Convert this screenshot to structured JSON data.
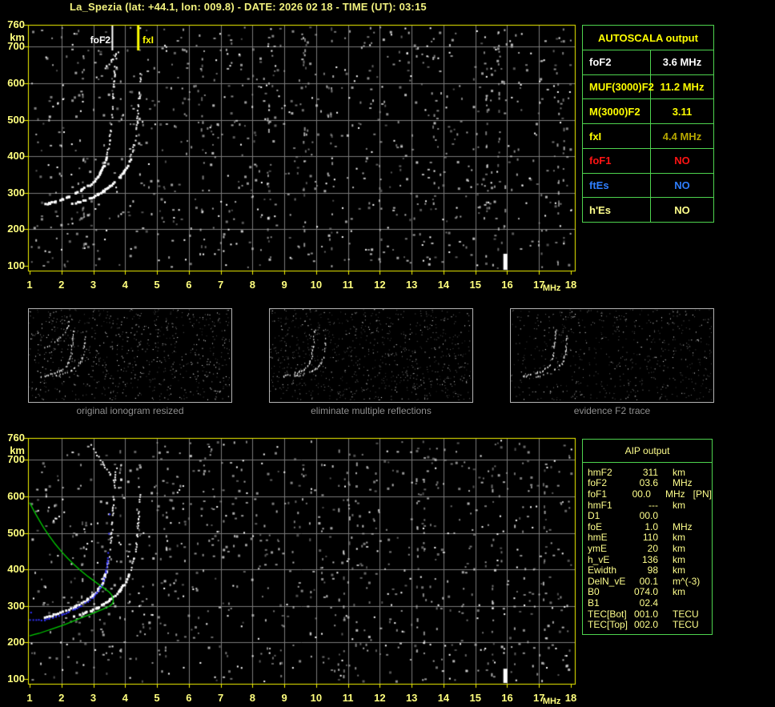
{
  "title": "La_Spezia (lat: +44.1, lon: 009.8) - DATE: 2026 02 18 - TIME (UT): 03:15",
  "colors": {
    "frame_yellow": "#f4f400",
    "tick_label": "#ffff7e",
    "grid_gray": "#7a7a7a",
    "noise_gray": "#9a9a9a",
    "trace_white": "#ffffff",
    "profile_green": "#00cc00",
    "restored_blue": "#3333ff",
    "table_border_green": "#4ed34e",
    "bright_yellow": "#ffff00",
    "pale_yellow": "#ffff8c",
    "olive_yellow": "#b8a800",
    "red": "#ff1414",
    "blue_text": "#2f7fff",
    "white": "#ffffff",
    "caption_gray": "#8f8f8f"
  },
  "autoscala_table": {
    "header": "AUTOSCALA output",
    "rows": [
      {
        "label": "foF2",
        "value": "3.6 MHz",
        "label_color": "#ffffff",
        "value_color": "#ffffff"
      },
      {
        "label": "MUF(3000)F2",
        "value": "11.2 MHz",
        "label_color": "#ffff00",
        "value_color": "#ffff00"
      },
      {
        "label": "M(3000)F2",
        "value": "3.11",
        "label_color": "#ffff00",
        "value_color": "#ffff00"
      },
      {
        "label": "fxI",
        "value": "4.4 MHz",
        "label_color": "#ffff00",
        "value_color": "#b8a800"
      },
      {
        "label": "foF1",
        "value": "NO",
        "label_color": "#ff1414",
        "value_color": "#ff1414"
      },
      {
        "label": "ftEs",
        "value": "NO",
        "label_color": "#2f7fff",
        "value_color": "#2f7fff"
      },
      {
        "label": "h'Es",
        "value": "NO",
        "label_color": "#ffff8c",
        "value_color": "#ffff8c"
      }
    ]
  },
  "aip_table": {
    "header": "AIP output",
    "rows": [
      {
        "label": "hmF2",
        "value": "311",
        "unit": "km",
        "extra": ""
      },
      {
        "label": "foF2",
        "value": "03.6",
        "unit": "MHz",
        "extra": ""
      },
      {
        "label": "foF1",
        "value": "00.0",
        "unit": "MHz",
        "extra": "[PN]"
      },
      {
        "label": "hmF1",
        "value": "---",
        "unit": "km",
        "extra": ""
      },
      {
        "label": "D1",
        "value": "00.0",
        "unit": "",
        "extra": ""
      },
      {
        "label": "foE",
        "value": "1.0",
        "unit": "MHz",
        "extra": ""
      },
      {
        "label": "hmE",
        "value": "110",
        "unit": "km",
        "extra": ""
      },
      {
        "label": "ymE",
        "value": "20",
        "unit": "km",
        "extra": ""
      },
      {
        "label": "h_vE",
        "value": "136",
        "unit": "km",
        "extra": ""
      },
      {
        "label": "Ewidth",
        "value": "98",
        "unit": "km",
        "extra": ""
      },
      {
        "label": "DelN_vE",
        "value": "00.1",
        "unit": "m^(-3)",
        "extra": ""
      },
      {
        "label": "B0",
        "value": "074.0",
        "unit": "km",
        "extra": ""
      },
      {
        "label": "B1",
        "value": "02.4",
        "unit": "",
        "extra": ""
      },
      {
        "label": "TEC[Bot]",
        "value": "001.0",
        "unit": "TECU",
        "extra": ""
      },
      {
        "label": "TEC[Top]",
        "value": "002.0",
        "unit": "TECU",
        "extra": ""
      }
    ]
  },
  "thumbnails": [
    {
      "caption": "original ionogram resized"
    },
    {
      "caption": "eliminate multiple reflections"
    },
    {
      "caption": "evidence F2 trace"
    }
  ],
  "chart_data": [
    {
      "id": "main_ionogram",
      "type": "scatter",
      "xlabel": "MHz",
      "ylabel": "km",
      "xlim": [
        1,
        18
      ],
      "ylim": [
        100,
        760
      ],
      "grid": true,
      "x_ticks": [
        "1",
        "2",
        "3",
        "4",
        "5",
        "6",
        "7",
        "8",
        "9",
        "10",
        "11",
        "12",
        "13",
        "14",
        "15",
        "16",
        "17",
        "18"
      ],
      "y_ticks": [
        {
          "v": 760,
          "label": "760"
        },
        {
          "v": 700,
          "label": "700"
        },
        {
          "v": 600,
          "label": "600"
        },
        {
          "v": 500,
          "label": "500"
        },
        {
          "v": 400,
          "label": "400"
        },
        {
          "v": 300,
          "label": "300"
        },
        {
          "v": 200,
          "label": "200"
        },
        {
          "v": 100,
          "label": "100"
        }
      ],
      "markers": [
        {
          "name": "foF2",
          "mhz": 3.6,
          "color": "#ffffff"
        },
        {
          "name": "fxI",
          "mhz": 4.4,
          "color": "#ffff00"
        }
      ],
      "series": [
        {
          "name": "f2-trace-o-mode",
          "points": [
            [
              1.45,
              271
            ],
            [
              1.6,
              275
            ],
            [
              1.8,
              280
            ],
            [
              2.0,
              286
            ],
            [
              2.2,
              293
            ],
            [
              2.4,
              301
            ],
            [
              2.6,
              310
            ],
            [
              2.8,
              321
            ],
            [
              2.95,
              331
            ],
            [
              3.1,
              345
            ],
            [
              3.2,
              358
            ],
            [
              3.3,
              376
            ],
            [
              3.38,
              397
            ],
            [
              3.44,
              420
            ],
            [
              3.49,
              446
            ],
            [
              3.53,
              474
            ],
            [
              3.56,
              503
            ],
            [
              3.58,
              532
            ],
            [
              3.6,
              562
            ],
            [
              3.62,
              594
            ],
            [
              3.64,
              625
            ],
            [
              3.67,
              654
            ],
            [
              3.7,
              681
            ]
          ]
        },
        {
          "name": "f2-trace-x-mode",
          "points": [
            [
              2.3,
              272
            ],
            [
              2.5,
              277
            ],
            [
              2.7,
              283
            ],
            [
              2.9,
              290
            ],
            [
              3.1,
              298
            ],
            [
              3.3,
              308
            ],
            [
              3.5,
              320
            ],
            [
              3.65,
              331
            ],
            [
              3.8,
              345
            ],
            [
              3.95,
              362
            ],
            [
              4.08,
              383
            ],
            [
              4.18,
              407
            ],
            [
              4.26,
              434
            ],
            [
              4.32,
              463
            ],
            [
              4.36,
              494
            ],
            [
              4.39,
              526
            ],
            [
              4.42,
              560
            ],
            [
              4.44,
              594
            ],
            [
              4.46,
              628
            ]
          ]
        },
        {
          "name": "es-patch",
          "points": [
            [
              1.72,
              536
            ],
            [
              1.8,
              542
            ],
            [
              1.88,
              548
            ],
            [
              1.96,
              553
            ],
            [
              2.04,
              557
            ]
          ]
        },
        {
          "name": "spread-segment",
          "points": [
            [
              3.0,
              610
            ],
            [
              3.2,
              630
            ],
            [
              3.4,
              649
            ],
            [
              3.6,
              668
            ],
            [
              3.76,
              688
            ]
          ]
        },
        {
          "name": "interference-16mhz",
          "points": [
            [
              15.93,
              100
            ],
            [
              15.93,
              133
            ]
          ]
        }
      ]
    },
    {
      "id": "inverted_ionogram",
      "type": "scatter",
      "xlabel": "MHz",
      "ylabel": "km",
      "xlim": [
        1,
        18
      ],
      "ylim": [
        100,
        760
      ],
      "grid": true,
      "x_ticks": [
        "1",
        "2",
        "3",
        "4",
        "5",
        "6",
        "7",
        "8",
        "9",
        "10",
        "11",
        "12",
        "13",
        "14",
        "15",
        "16",
        "17",
        "18"
      ],
      "y_ticks": [
        {
          "v": 760,
          "label": "760"
        },
        {
          "v": 700,
          "label": "700"
        },
        {
          "v": 600,
          "label": "600"
        },
        {
          "v": 500,
          "label": "500"
        },
        {
          "v": 400,
          "label": "400"
        },
        {
          "v": 300,
          "label": "300"
        },
        {
          "v": 200,
          "label": "200"
        },
        {
          "v": 100,
          "label": "100"
        }
      ],
      "markers": [],
      "series": [
        {
          "name": "f2-trace-o-mode",
          "points": [
            [
              1.45,
              271
            ],
            [
              1.6,
              275
            ],
            [
              1.8,
              280
            ],
            [
              2.0,
              286
            ],
            [
              2.2,
              293
            ],
            [
              2.4,
              301
            ],
            [
              2.6,
              310
            ],
            [
              2.8,
              321
            ],
            [
              2.95,
              331
            ],
            [
              3.1,
              345
            ],
            [
              3.2,
              358
            ],
            [
              3.3,
              376
            ],
            [
              3.38,
              397
            ],
            [
              3.44,
              420
            ],
            [
              3.49,
              446
            ],
            [
              3.53,
              474
            ],
            [
              3.56,
              503
            ],
            [
              3.58,
              532
            ],
            [
              3.6,
              562
            ],
            [
              3.62,
              594
            ],
            [
              3.64,
              625
            ],
            [
              3.67,
              654
            ],
            [
              3.7,
              681
            ]
          ]
        },
        {
          "name": "f2-trace-x-mode",
          "points": [
            [
              2.3,
              272
            ],
            [
              2.5,
              277
            ],
            [
              2.7,
              283
            ],
            [
              2.9,
              290
            ],
            [
              3.1,
              298
            ],
            [
              3.3,
              308
            ],
            [
              3.5,
              320
            ],
            [
              3.65,
              331
            ],
            [
              3.8,
              345
            ],
            [
              3.95,
              362
            ],
            [
              4.08,
              383
            ],
            [
              4.18,
              407
            ],
            [
              4.26,
              434
            ],
            [
              4.32,
              463
            ],
            [
              4.36,
              494
            ],
            [
              4.39,
              526
            ],
            [
              4.42,
              560
            ],
            [
              4.44,
              594
            ],
            [
              4.46,
              628
            ]
          ]
        },
        {
          "name": "es-patch",
          "points": [
            [
              1.72,
              536
            ],
            [
              1.8,
              542
            ],
            [
              1.88,
              548
            ],
            [
              1.96,
              553
            ],
            [
              2.04,
              557
            ]
          ]
        },
        {
          "name": "spread-segment",
          "points": [
            [
              2.9,
              745
            ],
            [
              3.1,
              716
            ],
            [
              3.3,
              689
            ],
            [
              3.5,
              662
            ],
            [
              3.65,
              641
            ]
          ]
        },
        {
          "name": "interference-16mhz",
          "points": [
            [
              15.93,
              100
            ],
            [
              15.93,
              128
            ]
          ]
        }
      ],
      "profile_green": [
        [
          1.0,
          583
        ],
        [
          1.15,
          558
        ],
        [
          1.3,
          535
        ],
        [
          1.45,
          513
        ],
        [
          1.6,
          494
        ],
        [
          1.8,
          470
        ],
        [
          2.0,
          449
        ],
        [
          2.2,
          430
        ],
        [
          2.4,
          413
        ],
        [
          2.6,
          397
        ],
        [
          2.8,
          383
        ],
        [
          3.0,
          370
        ],
        [
          3.2,
          357
        ],
        [
          3.35,
          348
        ],
        [
          3.5,
          338
        ],
        [
          3.58,
          330
        ],
        [
          3.62,
          321
        ],
        [
          3.63,
          313
        ],
        [
          3.6,
          306
        ],
        [
          3.5,
          299
        ],
        [
          3.3,
          291
        ],
        [
          3.1,
          284
        ],
        [
          2.9,
          277
        ],
        [
          2.7,
          270
        ],
        [
          2.5,
          263
        ],
        [
          2.3,
          256
        ],
        [
          2.1,
          249
        ],
        [
          1.9,
          243
        ],
        [
          1.7,
          237
        ],
        [
          1.5,
          231
        ],
        [
          1.3,
          225
        ],
        [
          1.15,
          222
        ],
        [
          1.0,
          218
        ]
      ],
      "restored_blue": {
        "main": [
          [
            1.0,
            263
          ],
          [
            1.45,
            263
          ],
          [
            1.6,
            267
          ],
          [
            1.8,
            272
          ],
          [
            2.0,
            278
          ],
          [
            2.2,
            285
          ],
          [
            2.4,
            293
          ],
          [
            2.6,
            302
          ],
          [
            2.8,
            313
          ],
          [
            2.95,
            324
          ],
          [
            3.1,
            338
          ],
          [
            3.2,
            352
          ],
          [
            3.3,
            371
          ],
          [
            3.37,
            394
          ],
          [
            3.42,
            420
          ],
          [
            3.45,
            447
          ]
        ],
        "singles": [
          [
            3.47,
            500
          ],
          [
            3.49,
            553
          ],
          [
            1.02,
            284
          ]
        ]
      }
    }
  ]
}
